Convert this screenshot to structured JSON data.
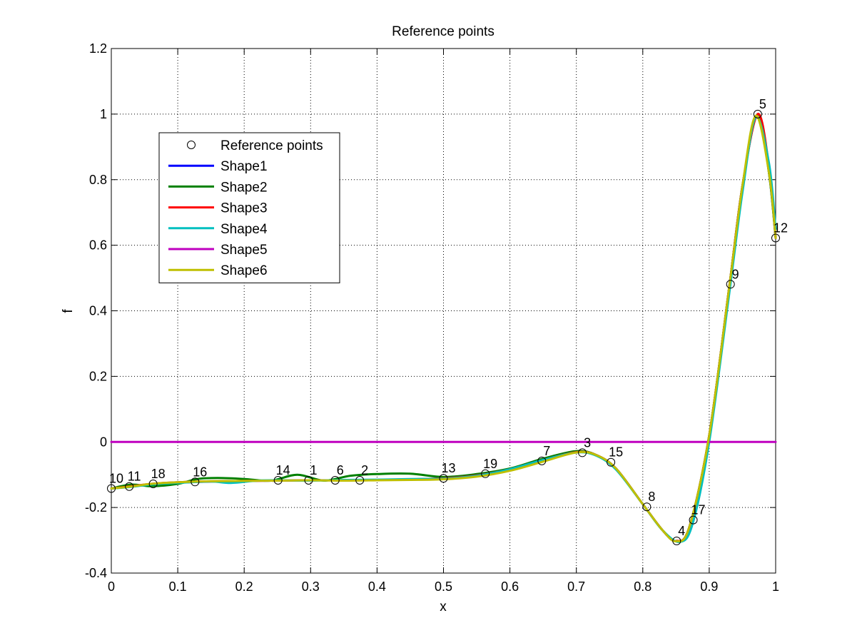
{
  "chart_data": {
    "type": "line",
    "title": "Reference points",
    "xlabel": "x",
    "ylabel": "f",
    "xlim": [
      0,
      1
    ],
    "ylim": [
      -0.4,
      1.2
    ],
    "xticks": [
      0,
      0.1,
      0.2,
      0.3,
      0.4,
      0.5,
      0.6,
      0.7,
      0.8,
      0.9,
      1
    ],
    "xtick_labels": [
      "0",
      "0.1",
      "0.2",
      "0.3",
      "0.4",
      "0.5",
      "0.6",
      "0.7",
      "0.8",
      "0.9",
      "1"
    ],
    "yticks": [
      -0.4,
      -0.2,
      0,
      0.2,
      0.4,
      0.6,
      0.8,
      1,
      1.2
    ],
    "ytick_labels": [
      "-0.4",
      "-0.2",
      "0",
      "0.2",
      "0.4",
      "0.6",
      "0.8",
      "1",
      "1.2"
    ],
    "grid": true,
    "legend_position": "upper-left",
    "reference_points": {
      "name": "Reference points",
      "points": [
        {
          "label": "10",
          "x": 0.0,
          "y": -0.142
        },
        {
          "label": "11",
          "x": 0.027,
          "y": -0.136
        },
        {
          "label": "18",
          "x": 0.063,
          "y": -0.128
        },
        {
          "label": "16",
          "x": 0.126,
          "y": -0.122
        },
        {
          "label": "14",
          "x": 0.251,
          "y": -0.117
        },
        {
          "label": "1",
          "x": 0.297,
          "y": -0.117
        },
        {
          "label": "6",
          "x": 0.337,
          "y": -0.117
        },
        {
          "label": "2",
          "x": 0.374,
          "y": -0.117
        },
        {
          "label": "13",
          "x": 0.5,
          "y": -0.111
        },
        {
          "label": "19",
          "x": 0.563,
          "y": -0.097
        },
        {
          "label": "7",
          "x": 0.648,
          "y": -0.058
        },
        {
          "label": "3",
          "x": 0.709,
          "y": -0.033
        },
        {
          "label": "15",
          "x": 0.752,
          "y": -0.062
        },
        {
          "label": "8",
          "x": 0.806,
          "y": -0.198
        },
        {
          "label": "4",
          "x": 0.851,
          "y": -0.302
        },
        {
          "label": "17",
          "x": 0.876,
          "y": -0.238
        },
        {
          "label": "9",
          "x": 0.932,
          "y": 0.481
        },
        {
          "label": "5",
          "x": 0.973,
          "y": 1.0
        },
        {
          "label": "12",
          "x": 1.0,
          "y": 0.622
        }
      ]
    },
    "series": [
      {
        "name": "Shape1",
        "color": "#0000ff",
        "x": [
          0,
          0.03,
          0.06,
          0.1,
          0.15,
          0.2,
          0.25,
          0.3,
          0.35,
          0.4,
          0.45,
          0.5,
          0.55,
          0.6,
          0.65,
          0.7,
          0.73,
          0.76,
          0.8,
          0.83,
          0.85,
          0.87,
          0.9,
          0.93,
          0.95,
          0.973,
          0.99,
          1.0
        ],
        "y": [
          -0.142,
          -0.136,
          -0.129,
          -0.124,
          -0.121,
          -0.119,
          -0.118,
          -0.117,
          -0.117,
          -0.116,
          -0.114,
          -0.111,
          -0.102,
          -0.083,
          -0.055,
          -0.031,
          -0.04,
          -0.082,
          -0.19,
          -0.27,
          -0.302,
          -0.26,
          0.02,
          0.47,
          0.78,
          1.0,
          0.82,
          0.622
        ]
      },
      {
        "name": "Shape2",
        "color": "#008000",
        "x": [
          0,
          0.03,
          0.06,
          0.1,
          0.13,
          0.16,
          0.2,
          0.24,
          0.28,
          0.32,
          0.36,
          0.4,
          0.45,
          0.5,
          0.55,
          0.6,
          0.65,
          0.7,
          0.73,
          0.76,
          0.8,
          0.83,
          0.85,
          0.87,
          0.9,
          0.93,
          0.95,
          0.973,
          0.99,
          1.0
        ],
        "y": [
          -0.142,
          -0.13,
          -0.135,
          -0.128,
          -0.113,
          -0.11,
          -0.113,
          -0.118,
          -0.1,
          -0.118,
          -0.103,
          -0.098,
          -0.097,
          -0.107,
          -0.098,
          -0.081,
          -0.051,
          -0.028,
          -0.04,
          -0.082,
          -0.19,
          -0.27,
          -0.302,
          -0.26,
          0.02,
          0.47,
          0.78,
          1.0,
          0.82,
          0.622
        ]
      },
      {
        "name": "Shape3",
        "color": "#ff0000",
        "x": [
          0,
          0.03,
          0.06,
          0.1,
          0.15,
          0.2,
          0.25,
          0.3,
          0.35,
          0.4,
          0.45,
          0.5,
          0.55,
          0.6,
          0.65,
          0.7,
          0.73,
          0.76,
          0.8,
          0.83,
          0.85,
          0.87,
          0.9,
          0.93,
          0.95,
          0.973,
          0.99,
          1.0
        ],
        "y": [
          -0.142,
          -0.135,
          -0.128,
          -0.123,
          -0.12,
          -0.119,
          -0.118,
          -0.117,
          -0.117,
          -0.116,
          -0.114,
          -0.111,
          -0.102,
          -0.083,
          -0.055,
          -0.031,
          -0.04,
          -0.082,
          -0.19,
          -0.27,
          -0.302,
          -0.26,
          0.02,
          0.47,
          0.78,
          1.0,
          0.84,
          0.622
        ]
      },
      {
        "name": "Shape4",
        "color": "#00bfbf",
        "x": [
          0,
          0.03,
          0.06,
          0.1,
          0.15,
          0.18,
          0.22,
          0.25,
          0.3,
          0.35,
          0.4,
          0.45,
          0.5,
          0.55,
          0.6,
          0.65,
          0.7,
          0.73,
          0.76,
          0.8,
          0.83,
          0.856,
          0.875,
          0.9,
          0.93,
          0.95,
          0.97,
          0.99,
          1.0
        ],
        "y": [
          -0.142,
          -0.137,
          -0.13,
          -0.125,
          -0.121,
          -0.125,
          -0.118,
          -0.117,
          -0.118,
          -0.116,
          -0.115,
          -0.113,
          -0.112,
          -0.103,
          -0.083,
          -0.055,
          -0.032,
          -0.042,
          -0.085,
          -0.19,
          -0.27,
          -0.305,
          -0.25,
          0.0,
          0.45,
          0.76,
          0.99,
          0.85,
          0.65
        ]
      },
      {
        "name": "Shape5",
        "color": "#bf00bf",
        "x": [
          0,
          1.0
        ],
        "y": [
          0,
          0
        ]
      },
      {
        "name": "Shape6",
        "color": "#bfbf00",
        "x": [
          0,
          0.03,
          0.06,
          0.1,
          0.15,
          0.2,
          0.25,
          0.3,
          0.35,
          0.4,
          0.45,
          0.5,
          0.55,
          0.6,
          0.65,
          0.7,
          0.73,
          0.76,
          0.8,
          0.83,
          0.85,
          0.87,
          0.9,
          0.93,
          0.95,
          0.97,
          0.99,
          1.0
        ],
        "y": [
          -0.142,
          -0.136,
          -0.128,
          -0.123,
          -0.12,
          -0.119,
          -0.118,
          -0.117,
          -0.118,
          -0.117,
          -0.116,
          -0.114,
          -0.106,
          -0.088,
          -0.06,
          -0.032,
          -0.04,
          -0.082,
          -0.19,
          -0.27,
          -0.303,
          -0.26,
          0.02,
          0.47,
          0.78,
          0.995,
          0.82,
          0.622
        ]
      }
    ]
  }
}
